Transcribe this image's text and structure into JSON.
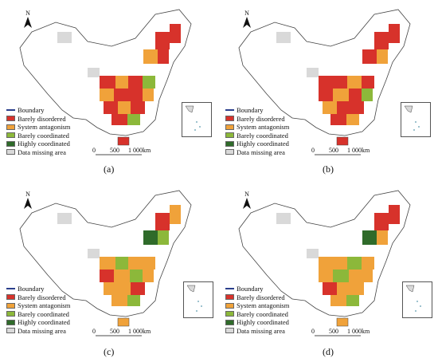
{
  "colors": {
    "boundary": "#2b3f8c",
    "barely_disordered": "#d7322b",
    "system_antagonism": "#f0a23a",
    "barely_coordinated": "#8cb83a",
    "highly_coordinated": "#2f6b2a",
    "data_missing": "#d9d9d9"
  },
  "legend": {
    "boundary": "Boundary",
    "barely_disordered": "Barely disordered",
    "system_antagonism": "System antagonism",
    "barely_coordinated": "Barely coordinated",
    "highly_coordinated": "Highly coordinated",
    "data_missing": "Data missing area"
  },
  "north_label": "N",
  "scale": {
    "t0": "0",
    "t1": "500",
    "t2": "1 000km"
  },
  "panels": [
    {
      "caption": "(a)",
      "dominant": "barely_disordered"
    },
    {
      "caption": "(b)",
      "dominant": "barely_disordered"
    },
    {
      "caption": "(c)",
      "dominant": "system_antagonism"
    },
    {
      "caption": "(d)",
      "dominant": "system_antagonism"
    }
  ]
}
